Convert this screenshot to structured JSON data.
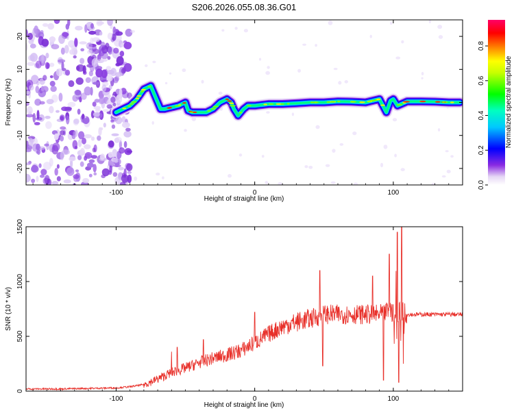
{
  "title": "S206.2026.055.08.36.G01",
  "colors": {
    "snr_line": "#e8302a",
    "frame": "#000000",
    "background": "#ffffff"
  },
  "chart_data": [
    {
      "type": "heatmap",
      "xlabel": "Height of straight line (km)",
      "ylabel": "Frequency (Hz)",
      "xlim": [
        -165,
        150
      ],
      "ylim": [
        -25,
        25
      ],
      "x_ticks": [
        -100,
        0,
        100
      ],
      "y_ticks": [
        -20,
        -10,
        0,
        10,
        20
      ],
      "colorbar": {
        "label": "Normalized spectral amplitude",
        "range": [
          0,
          0.95
        ],
        "ticks": [
          "0.0",
          "0.2",
          "0.4",
          "0.6",
          "0.8"
        ]
      },
      "frequency_track": {
        "x": [
          -100,
          -95,
          -90,
          -85,
          -80,
          -75,
          -72,
          -68,
          -65,
          -60,
          -55,
          -50,
          -48,
          -45,
          -40,
          -35,
          -30,
          -25,
          -20,
          -17,
          -15,
          -12,
          -8,
          -5,
          0,
          10,
          20,
          30,
          40,
          50,
          60,
          70,
          80,
          90,
          95,
          98,
          100,
          103,
          110,
          120,
          130,
          140,
          148
        ],
        "y": [
          -3,
          -2,
          -1,
          1,
          4,
          5,
          2,
          -2,
          -2,
          -1.5,
          -1,
          0,
          -2.5,
          -3,
          -3,
          -3,
          -2,
          0,
          1,
          0,
          -2,
          -4,
          -2,
          -1,
          -1,
          -0.5,
          -0.5,
          -0.3,
          0,
          0,
          0.3,
          0.2,
          0,
          1,
          -3,
          0.5,
          1,
          -1,
          0.3,
          0.3,
          0.2,
          0,
          0
        ]
      },
      "notes": "Left region (x < -100 km) shows scattered low-amplitude purple noise across all frequencies."
    },
    {
      "type": "line",
      "xlabel": "Height of straight line (km)",
      "ylabel": "SNR (10 * v/v)",
      "xlim": [
        -165,
        150
      ],
      "ylim": [
        0,
        1500
      ],
      "x_ticks": [
        -100,
        0,
        100
      ],
      "y_ticks": [
        0,
        500,
        1000,
        1500
      ],
      "series": [
        {
          "x": [
            -165,
            -140,
            -120,
            -100,
            -90,
            -80,
            -70,
            -60,
            -50,
            -40,
            -30,
            -20,
            -10,
            0,
            10,
            20,
            30,
            40,
            45,
            50,
            60,
            70,
            80,
            90,
            95,
            100,
            103,
            106,
            108,
            110,
            120,
            130,
            140,
            150
          ],
          "y": [
            20,
            20,
            25,
            30,
            40,
            60,
            110,
            170,
            210,
            260,
            300,
            330,
            370,
            440,
            520,
            590,
            630,
            660,
            680,
            700,
            700,
            700,
            700,
            700,
            720,
            720,
            720,
            720,
            710,
            700,
            700,
            700,
            700,
            700
          ]
        }
      ],
      "spikes": [
        {
          "x": -60,
          "y": 360
        },
        {
          "x": -56,
          "y": 400
        },
        {
          "x": -37,
          "y": 470
        },
        {
          "x": 0,
          "y": 720
        },
        {
          "x": 47,
          "y": 1100
        },
        {
          "x": 49,
          "y": 230
        },
        {
          "x": 85,
          "y": 1050
        },
        {
          "x": 93,
          "y": 100
        },
        {
          "x": 97,
          "y": 1250
        },
        {
          "x": 103,
          "y": 1450
        },
        {
          "x": 104,
          "y": 80
        },
        {
          "x": 106,
          "y": 1500
        },
        {
          "x": 107,
          "y": 250
        }
      ]
    }
  ]
}
